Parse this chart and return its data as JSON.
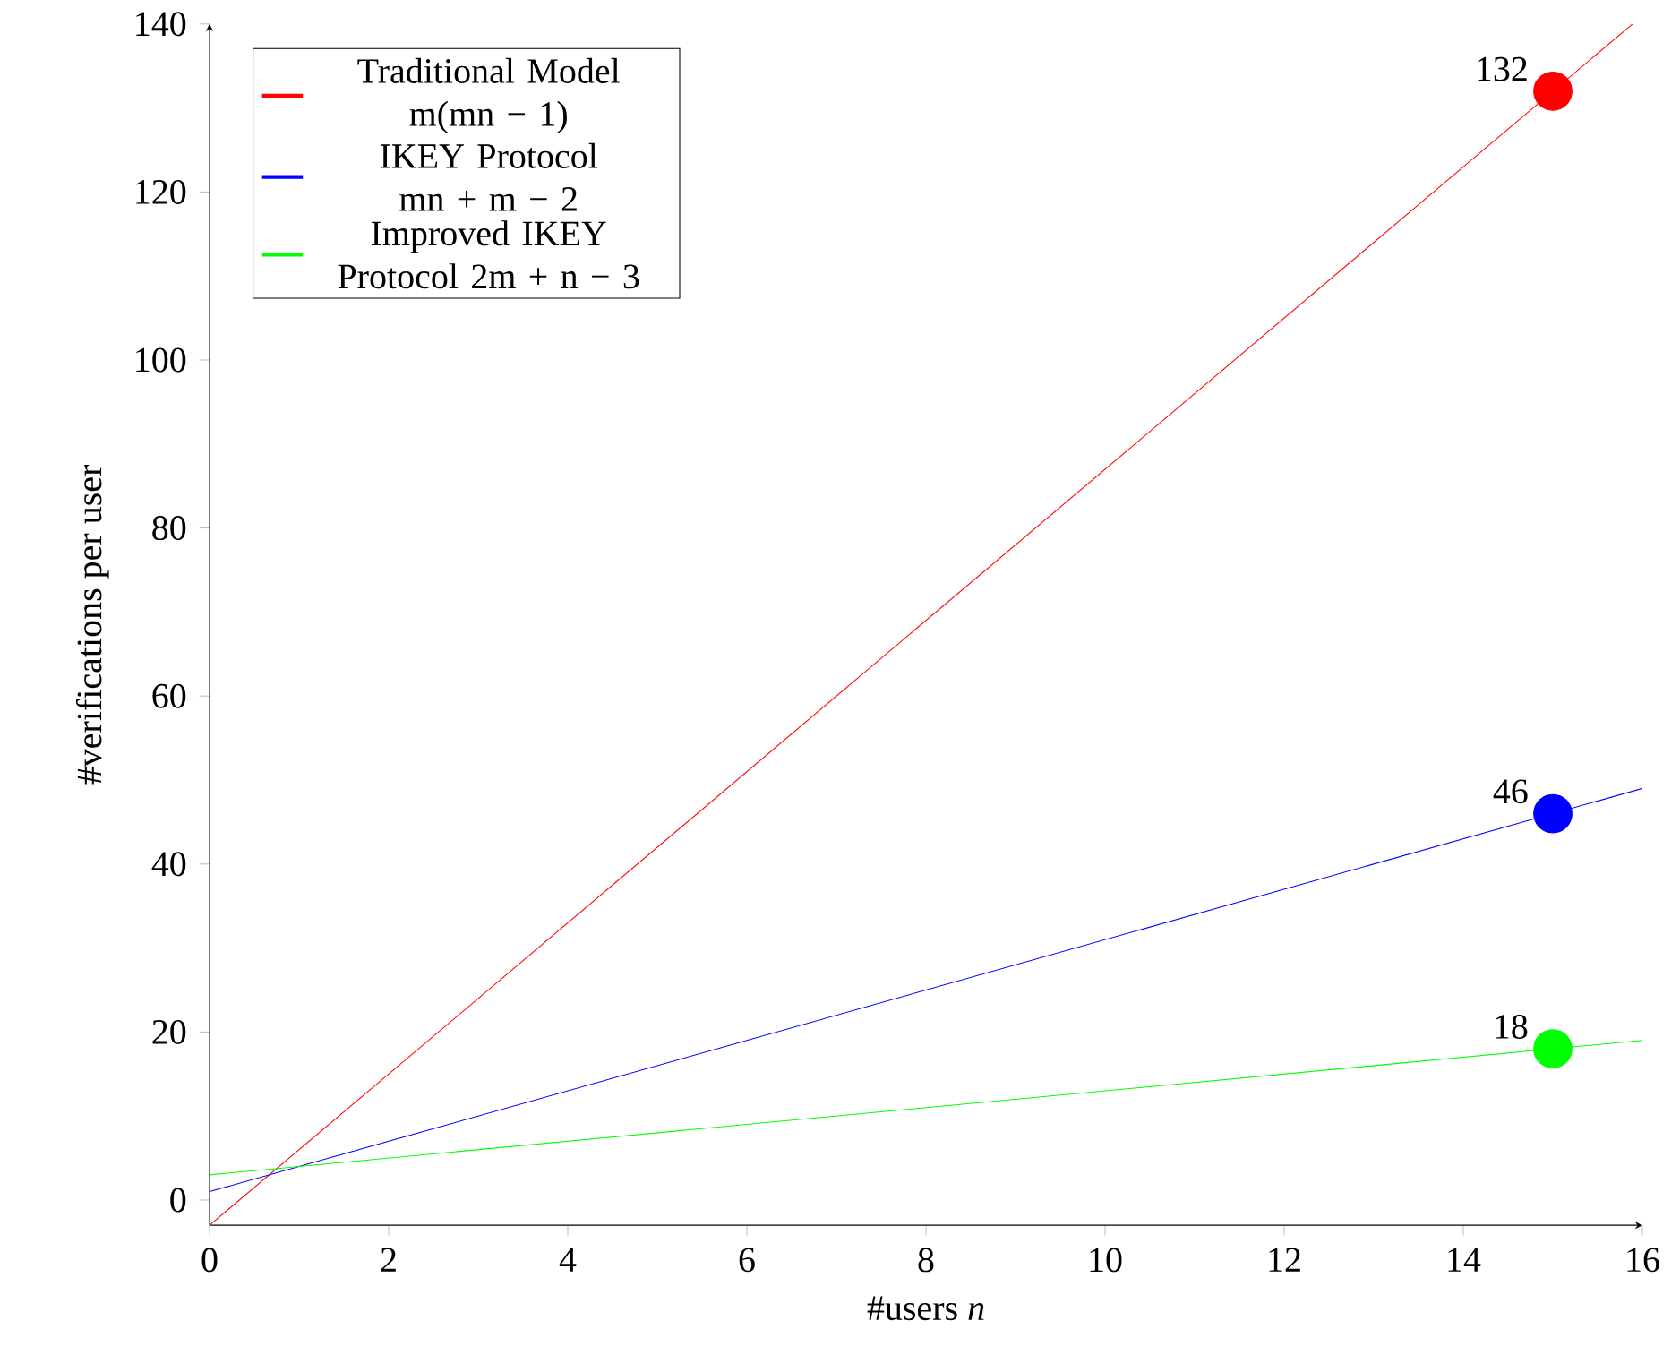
{
  "chart_data": {
    "type": "line",
    "xlabel": "#users *n*",
    "ylabel": "#verifications per user",
    "xlim": [
      0,
      16
    ],
    "ylim": [
      -3,
      140
    ],
    "xticks": [
      0,
      2,
      4,
      6,
      8,
      10,
      12,
      14,
      16
    ],
    "yticks": [
      0,
      20,
      40,
      60,
      80,
      100,
      120,
      140
    ],
    "grid": false,
    "legend": "top left",
    "marker": "none",
    "line_style": "solid",
    "series": [
      {
        "name": "Traditional Model m(mn − 1)",
        "color": "#ff0000",
        "x": [
          0,
          15.89
        ],
        "values": [
          -3,
          140
        ]
      },
      {
        "name": "IKEY Protocol mn + m − 2",
        "color": "#0000ff",
        "x": [
          0,
          16
        ],
        "values": [
          1,
          49
        ]
      },
      {
        "name": "Improved IKEY Protocol 2m + n − 3",
        "color": "#00ff00",
        "x": [
          0,
          16
        ],
        "values": [
          3,
          19
        ]
      },
      {
        "type": "scatter",
        "marker": "circle",
        "color": "#ff0000",
        "x": [
          15
        ],
        "values": [
          132
        ],
        "value_labels": [
          "132"
        ]
      },
      {
        "type": "scatter",
        "marker": "circle",
        "color": "#0000ff",
        "x": [
          15
        ],
        "values": [
          46
        ],
        "value_labels": [
          "46"
        ]
      },
      {
        "type": "scatter",
        "marker": "circle",
        "color": "#00ff00",
        "x": [
          15
        ],
        "values": [
          18
        ],
        "value_labels": [
          "18"
        ]
      }
    ]
  }
}
